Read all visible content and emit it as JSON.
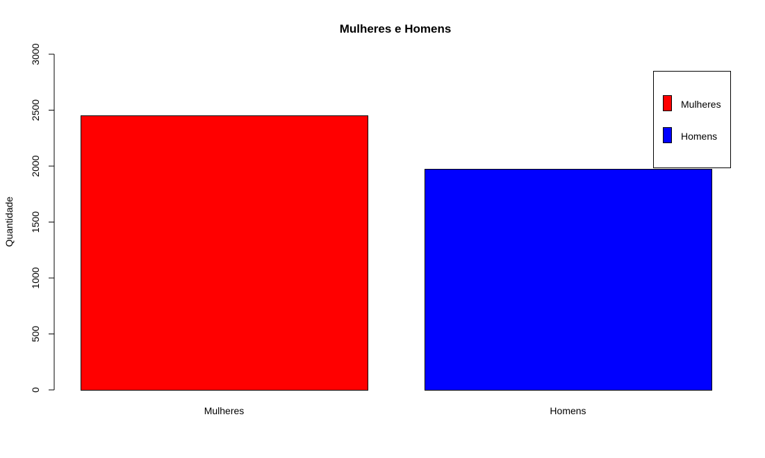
{
  "chart_data": {
    "type": "bar",
    "title": "Mulheres e Homens",
    "xlabel": "",
    "ylabel": "Quantidade",
    "categories": [
      "Mulheres",
      "Homens"
    ],
    "values": [
      2453,
      1975
    ],
    "colors": [
      "#ff0000",
      "#0000ff"
    ],
    "ylim": [
      0,
      3000
    ],
    "yticks": [
      "0",
      "500",
      "1000",
      "1500",
      "2000",
      "2500",
      "3000"
    ],
    "legend": {
      "placement": "top-right",
      "entries": [
        {
          "label": "Mulheres",
          "color": "#ff0000"
        },
        {
          "label": "Homens",
          "color": "#0000ff"
        }
      ]
    },
    "grid": false
  }
}
